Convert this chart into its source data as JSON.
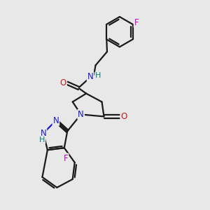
{
  "bg_color": "#e8e8e8",
  "bond_color": "#1a1a1a",
  "bond_width": 1.6,
  "atom_colors": {
    "N": "#1a1acc",
    "O": "#cc1a1a",
    "F": "#cc00cc",
    "H_teal": "#008080"
  },
  "font_size_atom": 8.5,
  "figsize": [
    3.0,
    3.0
  ],
  "dpi": 100,
  "xlim": [
    0,
    10
  ],
  "ylim": [
    0,
    10
  ]
}
